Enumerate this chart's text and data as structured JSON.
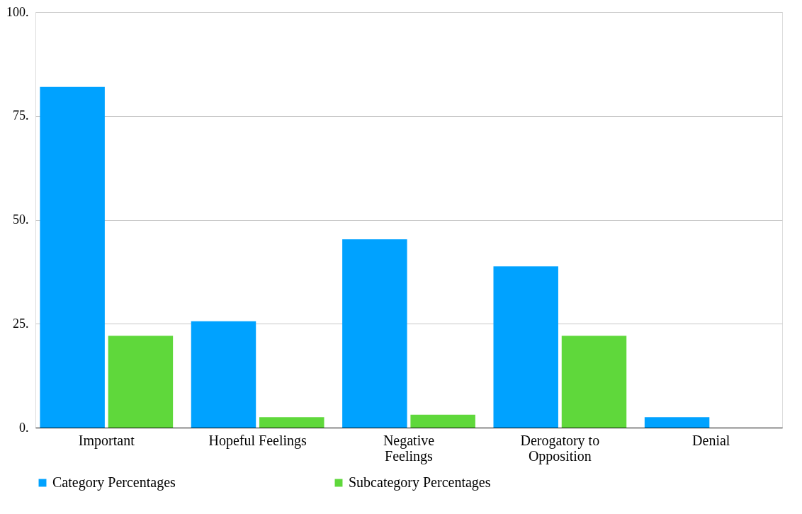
{
  "chart_data": {
    "type": "bar",
    "categories": [
      "Important",
      "Hopeful Feelings",
      "Negative Feelings",
      "Derogatory to Opposition",
      "Denial"
    ],
    "series": [
      {
        "name": "Category Percentages",
        "color": "#00a2ff",
        "values": [
          82.0,
          25.6,
          45.3,
          38.8,
          2.5
        ]
      },
      {
        "name": "Subcategory Percentages",
        "color": "#5fd83b",
        "values": [
          22.1,
          2.5,
          3.1,
          22.1,
          null
        ]
      }
    ],
    "ylim": [
      0,
      100
    ],
    "yticks": [
      {
        "value": 0,
        "label": "0."
      },
      {
        "value": 25,
        "label": "25."
      },
      {
        "value": 50,
        "label": "50."
      },
      {
        "value": 75,
        "label": "75."
      },
      {
        "value": 100,
        "label": "100."
      }
    ],
    "grid": "y",
    "legend": "bottom"
  }
}
